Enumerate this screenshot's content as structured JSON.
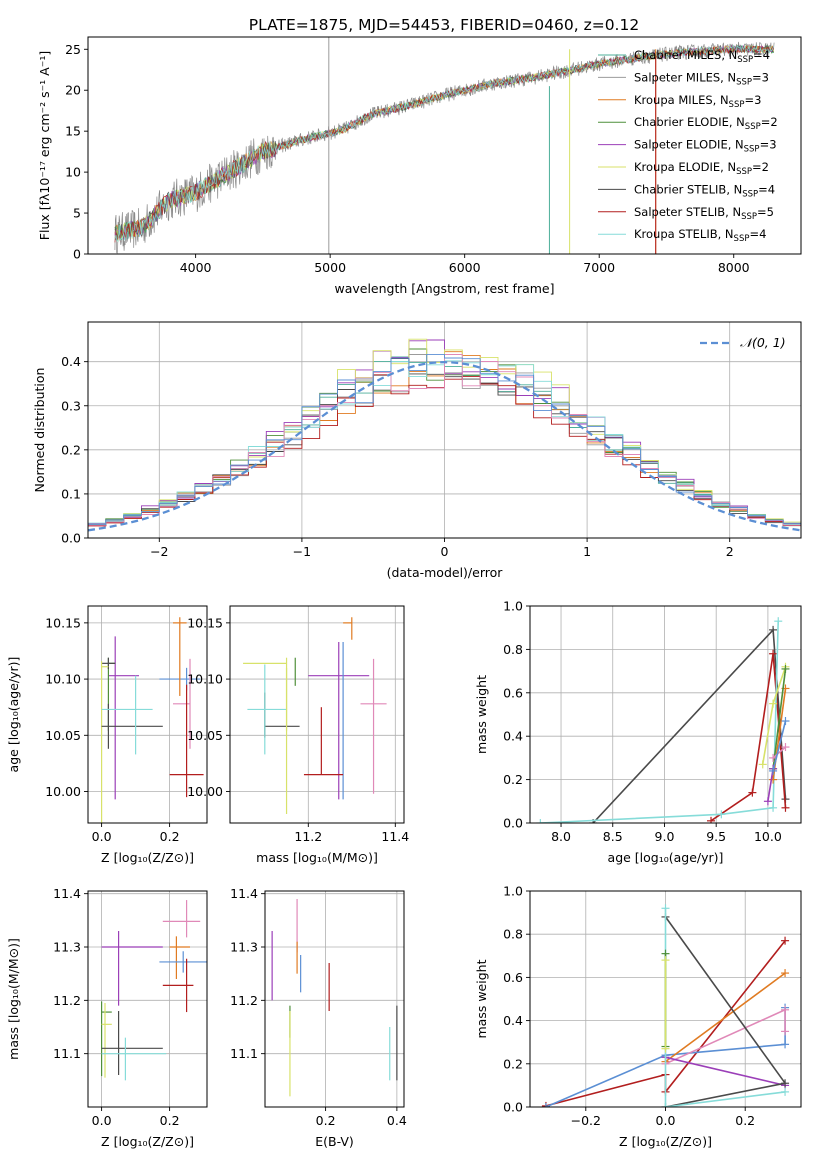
{
  "figure_title": "PLATE=1875, MJD=54453, FIBERID=0460, z=0.12",
  "legend_sub": "SSP",
  "legend_entries": [
    {
      "name": "Chabrier MILES",
      "n": "4",
      "color": "#4daf9a"
    },
    {
      "name": "Salpeter MILES",
      "n": "3",
      "color": "#9b9b9b"
    },
    {
      "name": "Kroupa MILES",
      "n": "3",
      "color": "#e07b22"
    },
    {
      "name": "Chabrier ELODIE",
      "n": "2",
      "color": "#4f8f3a"
    },
    {
      "name": "Salpeter ELODIE",
      "n": "3",
      "color": "#9b3fb8"
    },
    {
      "name": "Kroupa ELODIE",
      "n": "2",
      "color": "#d8e26a"
    },
    {
      "name": "Chabrier STELIB",
      "n": "4",
      "color": "#4a4a4a"
    },
    {
      "name": "Salpeter STELIB",
      "n": "5",
      "color": "#b21e1e"
    },
    {
      "name": "Kroupa STELIB",
      "n": "4",
      "color": "#86dcd9"
    }
  ],
  "chart_data": [
    {
      "type": "line",
      "xlabel": "wavelength [Angstrom, rest frame]",
      "ylabel": "Flux [fλ10⁻¹⁷ erg cm⁻² s⁻¹ A⁻¹]",
      "xlim": [
        3200,
        8500
      ],
      "ylim": [
        0,
        26.5
      ],
      "xticks": [
        4000,
        5000,
        6000,
        7000,
        8000
      ],
      "yticks": [
        0,
        5,
        10,
        15,
        20,
        25
      ],
      "legend": "upper-right",
      "continuum_knots": [
        [
          3400,
          2.5
        ],
        [
          3600,
          3.2
        ],
        [
          3800,
          6.5
        ],
        [
          4000,
          7.5
        ],
        [
          4200,
          9.5
        ],
        [
          4500,
          12.5
        ],
        [
          4800,
          14.0
        ],
        [
          5100,
          15.2
        ],
        [
          5300,
          17.0
        ],
        [
          5600,
          18.2
        ],
        [
          5900,
          19.6
        ],
        [
          6200,
          20.8
        ],
        [
          6500,
          21.5
        ],
        [
          6800,
          22.5
        ],
        [
          7000,
          23.2
        ],
        [
          7300,
          24.0
        ],
        [
          7600,
          24.6
        ],
        [
          8000,
          25.0
        ],
        [
          8300,
          25.0
        ]
      ],
      "x_range_data": [
        3400,
        8300
      ],
      "spikes": [
        {
          "x": 4990,
          "ymin": 0,
          "ymax": 26.5,
          "color": "#9b9b9b"
        },
        {
          "x": 6780,
          "ymin": 0,
          "ymax": 25,
          "color": "#d8e26a"
        },
        {
          "x": 7420,
          "ymin": 0,
          "ymax": 25,
          "color": "#e07b22"
        },
        {
          "x": 7420,
          "ymin": 0,
          "ymax": 24,
          "color": "#b21e1e"
        },
        {
          "x": 6630,
          "ymin": 0,
          "ymax": 20.5,
          "color": "#4daf9a"
        }
      ]
    },
    {
      "type": "histogram",
      "xlabel": "(data-model)/error",
      "ylabel": "Normed distribution",
      "xlim": [
        -2.5,
        2.5
      ],
      "ylim": [
        0,
        0.49
      ],
      "xticks": [
        -2,
        -1,
        0,
        1,
        2
      ],
      "yticks": [
        0.0,
        0.1,
        0.2,
        0.3,
        0.4
      ],
      "grid": true,
      "bins": 40,
      "reference_curve": {
        "label": "𝒩(0, 1)",
        "mean": 0,
        "sigma": 1,
        "color": "#5b8fd4"
      },
      "series_colors": [
        "#4daf9a",
        "#9b9b9b",
        "#e07b22",
        "#4f8f3a",
        "#9b3fb8",
        "#d8e26a",
        "#4a4a4a",
        "#b21e1e",
        "#86dcd9",
        "#e089b8",
        "#5b8fd4"
      ],
      "peak_values": [
        0.44,
        0.43,
        0.43,
        0.44,
        0.46,
        0.47,
        0.43,
        0.41,
        0.45,
        0.42,
        0.44
      ]
    },
    {
      "type": "errorbar",
      "xlabel": "Z [log₁₀(Z/Z⊙)]",
      "ylabel": "age  [log₁₀(age/yr)]",
      "xlim": [
        -0.04,
        0.31
      ],
      "ylim": [
        9.972,
        10.165
      ],
      "xticks": [
        0.0,
        0.2
      ],
      "yticks": [
        10.0,
        10.05,
        10.1,
        10.15
      ],
      "points": [
        {
          "x": 0.25,
          "y": 10.1,
          "xe": [
            0.08,
            0.04
          ],
          "ye": [
            0.01,
            0.01
          ],
          "color": "#5b8fd4"
        },
        {
          "x": 0.23,
          "y": 10.15,
          "xe": [
            0.02,
            0.02
          ],
          "ye": [
            0.065,
            0.005
          ],
          "color": "#e07b22"
        },
        {
          "x": 0.26,
          "y": 10.078,
          "xe": [
            0.05,
            0.0
          ],
          "ye": [
            0.04,
            0.04
          ],
          "color": "#e089b8"
        },
        {
          "x": 0.04,
          "y": 10.103,
          "xe": [
            0.02,
            0.07
          ],
          "ye": [
            0.11,
            0.035
          ],
          "color": "#9b3fb8"
        },
        {
          "x": 0.02,
          "y": 10.114,
          "xe": [
            0.0,
            0.02
          ],
          "ye": [
            0.06,
            0.005
          ],
          "color": "#4f8f3a"
        },
        {
          "x": 0.02,
          "y": 10.114,
          "xe": [
            0.02,
            0.02
          ],
          "ye": [
            0.005,
            0.005
          ],
          "color": "#4a4a4a"
        },
        {
          "x": 0.0,
          "y": 10.111,
          "xe": [
            0.0,
            0.02
          ],
          "ye": [
            0.14,
            0.005
          ],
          "color": "#d8e26a"
        },
        {
          "x": 0.02,
          "y": 10.058,
          "xe": [
            0.02,
            0.16
          ],
          "ye": [
            0.02,
            0.02
          ],
          "color": "#4a4a4a"
        },
        {
          "x": 0.1,
          "y": 10.073,
          "xe": [
            0.1,
            0.05
          ],
          "ye": [
            0.04,
            0.03
          ],
          "color": "#86dcd9"
        },
        {
          "x": 0.25,
          "y": 10.015,
          "xe": [
            0.05,
            0.05
          ],
          "ye": [
            0.02,
            0.08
          ],
          "color": "#b21e1e"
        }
      ]
    },
    {
      "type": "errorbar",
      "xlabel": "mass [log₁₀(M/M⊙)]",
      "xlim": [
        11.02,
        11.42
      ],
      "ylim": [
        9.972,
        10.165
      ],
      "xticks": [
        11.2,
        11.4
      ],
      "yticks": [
        10.0,
        10.05,
        10.1,
        10.15
      ],
      "points": [
        {
          "x": 11.3,
          "y": 10.15,
          "xe": [
            0.02,
            0.0
          ],
          "ye": [
            0.015,
            0.005
          ],
          "color": "#e07b22"
        },
        {
          "x": 11.35,
          "y": 10.078,
          "xe": [
            0.03,
            0.03
          ],
          "ye": [
            0.08,
            0.04
          ],
          "color": "#e089b8"
        },
        {
          "x": 11.27,
          "y": 10.103,
          "xe": [
            0.07,
            0.07
          ],
          "ye": [
            0.11,
            0.03
          ],
          "color": "#9b3fb8"
        },
        {
          "x": 11.28,
          "y": 10.093,
          "xe": [
            0.0,
            0.0
          ],
          "ye": [
            0.1,
            0.04
          ],
          "color": "#5b8fd4"
        },
        {
          "x": 11.15,
          "y": 10.114,
          "xe": [
            0.1,
            0.0
          ],
          "ye": [
            0.06,
            0.005
          ],
          "color": "#d8e26a"
        },
        {
          "x": 11.17,
          "y": 10.114,
          "xe": [
            0.0,
            0.0
          ],
          "ye": [
            0.02,
            0.005
          ],
          "color": "#4f8f3a"
        },
        {
          "x": 11.1,
          "y": 10.058,
          "xe": [
            0.0,
            0.08
          ],
          "ye": [
            0.01,
            0.03
          ],
          "color": "#4a4a4a"
        },
        {
          "x": 11.1,
          "y": 10.073,
          "xe": [
            0.04,
            0.05
          ],
          "ye": [
            0.04,
            0.04
          ],
          "color": "#86dcd9"
        },
        {
          "x": 11.23,
          "y": 10.015,
          "xe": [
            0.04,
            0.05
          ],
          "ye": [
            0.0,
            0.06
          ],
          "color": "#b21e1e"
        },
        {
          "x": 11.15,
          "y": 10.05,
          "xe": [
            0.0,
            0.0
          ],
          "ye": [
            0.07,
            0.06
          ],
          "color": "#d8e26a"
        }
      ]
    },
    {
      "type": "line",
      "xlabel": "age  [log₁₀(age/yr)]",
      "ylabel": "mass weight",
      "xlim": [
        7.7,
        10.32
      ],
      "ylim": [
        0,
        1.0
      ],
      "xticks": [
        8.0,
        8.5,
        9.0,
        9.5,
        10.0
      ],
      "yticks": [
        0.0,
        0.2,
        0.4,
        0.6,
        0.8,
        1.0
      ],
      "grid": true,
      "series": [
        {
          "color": "#4a4a4a",
          "x": [
            8.31,
            10.05,
            10.17
          ],
          "y": [
            0.0,
            0.89,
            0.11
          ]
        },
        {
          "color": "#b21e1e",
          "x": [
            9.45,
            9.85,
            10.05,
            10.17
          ],
          "y": [
            0.01,
            0.14,
            0.78,
            0.07
          ]
        },
        {
          "color": "#86dcd9",
          "x": [
            7.8,
            9.55,
            10.05,
            10.1
          ],
          "y": [
            0.0,
            0.04,
            0.07,
            0.93
          ]
        },
        {
          "color": "#d8e26a",
          "x": [
            9.95,
            10.05,
            10.17
          ],
          "y": [
            0.27,
            0.55,
            0.72
          ]
        },
        {
          "color": "#e07b22",
          "x": [
            10.05,
            10.17
          ],
          "y": [
            0.2,
            0.62
          ]
        },
        {
          "color": "#4f8f3a",
          "x": [
            10.05,
            10.17
          ],
          "y": [
            0.25,
            0.71
          ]
        },
        {
          "color": "#9b3fb8",
          "x": [
            10.0,
            10.05
          ],
          "y": [
            0.1,
            0.25
          ]
        },
        {
          "color": "#e089b8",
          "x": [
            10.05,
            10.17
          ],
          "y": [
            0.3,
            0.35
          ]
        },
        {
          "color": "#5b8fd4",
          "x": [
            10.05,
            10.17
          ],
          "y": [
            0.24,
            0.47
          ]
        }
      ]
    },
    {
      "type": "errorbar",
      "xlabel": "Z [log₁₀(Z/Z⊙)]",
      "ylabel": "mass [log₁₀(M/M⊙)]",
      "xlim": [
        -0.04,
        0.31
      ],
      "ylim": [
        11.0,
        11.405
      ],
      "xticks": [
        0.0,
        0.2
      ],
      "yticks": [
        11.1,
        11.2,
        11.3,
        11.4
      ],
      "points": [
        {
          "x": 0.25,
          "y": 11.348,
          "xe": [
            0.07,
            0.04
          ],
          "ye": [
            0.03,
            0.04
          ],
          "color": "#e089b8"
        },
        {
          "x": 0.22,
          "y": 11.3,
          "xe": [
            0.02,
            0.04
          ],
          "ye": [
            0.06,
            0.02
          ],
          "color": "#e07b22"
        },
        {
          "x": 0.24,
          "y": 11.272,
          "xe": [
            0.07,
            0.07
          ],
          "ye": [
            0.02,
            0.02
          ],
          "color": "#5b8fd4"
        },
        {
          "x": 0.05,
          "y": 11.3,
          "xe": [
            0.05,
            0.13
          ],
          "ye": [
            0.11,
            0.03
          ],
          "color": "#9b3fb8"
        },
        {
          "x": 0.25,
          "y": 11.228,
          "xe": [
            0.07,
            0.02
          ],
          "ye": [
            0.05,
            0.05
          ],
          "color": "#b21e1e"
        },
        {
          "x": 0.0,
          "y": 11.178,
          "xe": [
            0.0,
            0.03
          ],
          "ye": [
            0.12,
            0.02
          ],
          "color": "#4f8f3a"
        },
        {
          "x": 0.01,
          "y": 11.155,
          "xe": [
            0.01,
            0.02
          ],
          "ye": [
            0.1,
            0.04
          ],
          "color": "#d8e26a"
        },
        {
          "x": 0.05,
          "y": 11.11,
          "xe": [
            0.05,
            0.13
          ],
          "ye": [
            0.05,
            0.07
          ],
          "color": "#4a4a4a"
        },
        {
          "x": 0.07,
          "y": 11.1,
          "xe": [
            0.07,
            0.12
          ],
          "ye": [
            0.05,
            0.03
          ],
          "color": "#86dcd9"
        }
      ]
    },
    {
      "type": "errorbar",
      "xlabel": "E(B-V)",
      "xlim": [
        0.03,
        0.42
      ],
      "ylim": [
        11.0,
        11.405
      ],
      "xticks": [
        0.2,
        0.4
      ],
      "yticks": [
        11.1,
        11.2,
        11.3,
        11.4
      ],
      "points": [
        {
          "x": 0.12,
          "y": 11.34,
          "xe": [
            0.0,
            0.0
          ],
          "ye": [
            0.05,
            0.05
          ],
          "color": "#e089b8"
        },
        {
          "x": 0.05,
          "y": 11.26,
          "xe": [
            0.0,
            0.0
          ],
          "ye": [
            0.06,
            0.07
          ],
          "color": "#9b3fb8"
        },
        {
          "x": 0.12,
          "y": 11.28,
          "xe": [
            0.0,
            0.0
          ],
          "ye": [
            0.03,
            0.03
          ],
          "color": "#e07b22"
        },
        {
          "x": 0.13,
          "y": 11.245,
          "xe": [
            0.0,
            0.0
          ],
          "ye": [
            0.03,
            0.04
          ],
          "color": "#5b8fd4"
        },
        {
          "x": 0.21,
          "y": 11.23,
          "xe": [
            0.0,
            0.0
          ],
          "ye": [
            0.05,
            0.04
          ],
          "color": "#b21e1e"
        },
        {
          "x": 0.1,
          "y": 11.16,
          "xe": [
            0.0,
            0.0
          ],
          "ye": [
            0.03,
            0.03
          ],
          "color": "#4f8f3a"
        },
        {
          "x": 0.1,
          "y": 11.1,
          "xe": [
            0.0,
            0.0
          ],
          "ye": [
            0.08,
            0.08
          ],
          "color": "#d8e26a"
        },
        {
          "x": 0.4,
          "y": 11.12,
          "xe": [
            0.0,
            0.0
          ],
          "ye": [
            0.07,
            0.07
          ],
          "color": "#4a4a4a"
        },
        {
          "x": 0.38,
          "y": 11.1,
          "xe": [
            0.0,
            0.0
          ],
          "ye": [
            0.05,
            0.05
          ],
          "color": "#86dcd9"
        }
      ]
    },
    {
      "type": "line",
      "xlabel": "Z [log₁₀(Z/Z⊙)]",
      "ylabel": "mass weight",
      "xlim": [
        -0.34,
        0.34
      ],
      "ylim": [
        0,
        1.0
      ],
      "xticks": [
        -0.2,
        0.0,
        0.2
      ],
      "yticks": [
        0.0,
        0.2,
        0.4,
        0.6,
        0.8,
        1.0
      ],
      "grid": true,
      "series": [
        {
          "color": "#b21e1e",
          "x": [
            -0.3,
            0.0,
            0.0,
            0.3
          ],
          "y": [
            0.005,
            0.15,
            0.07,
            0.77
          ]
        },
        {
          "color": "#5b8fd4",
          "x": [
            -0.3,
            0.0,
            0.3,
            0.3
          ],
          "y": [
            0.0,
            0.24,
            0.29,
            0.46
          ]
        },
        {
          "color": "#e07b22",
          "x": [
            0.0,
            0.3
          ],
          "y": [
            0.21,
            0.62
          ]
        },
        {
          "color": "#e089b8",
          "x": [
            0.0,
            0.3,
            0.3
          ],
          "y": [
            0.2,
            0.45,
            0.35
          ]
        },
        {
          "color": "#9b3fb8",
          "x": [
            0.0,
            0.3
          ],
          "y": [
            0.23,
            0.1
          ]
        },
        {
          "color": "#4a4a4a",
          "x": [
            0.0,
            0.3,
            0.0
          ],
          "y": [
            0.88,
            0.11,
            0.0
          ]
        },
        {
          "color": "#86dcd9",
          "x": [
            0.0,
            0.0,
            0.3
          ],
          "y": [
            0.92,
            0.0,
            0.07
          ]
        },
        {
          "color": "#4f8f3a",
          "x": [
            0.0,
            0.0
          ],
          "y": [
            0.71,
            0.28
          ]
        },
        {
          "color": "#d8e26a",
          "x": [
            0.0,
            0.0
          ],
          "y": [
            0.68,
            0.27
          ]
        }
      ]
    }
  ]
}
